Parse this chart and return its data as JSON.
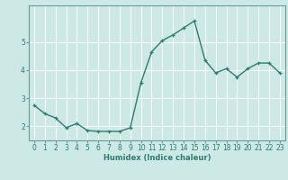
{
  "x": [
    0,
    1,
    2,
    3,
    4,
    5,
    6,
    7,
    8,
    9,
    10,
    11,
    12,
    13,
    14,
    15,
    16,
    17,
    18,
    19,
    20,
    21,
    22,
    23
  ],
  "y": [
    2.75,
    2.45,
    2.3,
    1.95,
    2.1,
    1.85,
    1.82,
    1.82,
    1.82,
    1.95,
    3.55,
    4.65,
    5.05,
    5.25,
    5.5,
    5.75,
    4.35,
    3.9,
    4.05,
    3.75,
    4.05,
    4.25,
    4.25,
    3.9
  ],
  "line_color": "#2e7d6e",
  "marker": "+",
  "marker_size": 3,
  "bg_color": "#cce9e5",
  "grid_color": "#ffffff",
  "tick_color": "#2e7d6e",
  "axis_color": "#6a9a96",
  "xlabel": "Humidex (Indice chaleur)",
  "xlabel_fontsize": 6.0,
  "yticks": [
    2,
    3,
    4,
    5
  ],
  "ylim": [
    1.5,
    6.3
  ],
  "xlim": [
    -0.5,
    23.5
  ],
  "xtick_labels": [
    "0",
    "1",
    "2",
    "3",
    "4",
    "5",
    "6",
    "7",
    "8",
    "9",
    "10",
    "11",
    "12",
    "13",
    "14",
    "15",
    "16",
    "17",
    "18",
    "19",
    "20",
    "21",
    "22",
    "23"
  ],
  "tick_fontsize": 5.5,
  "linewidth": 1.0
}
